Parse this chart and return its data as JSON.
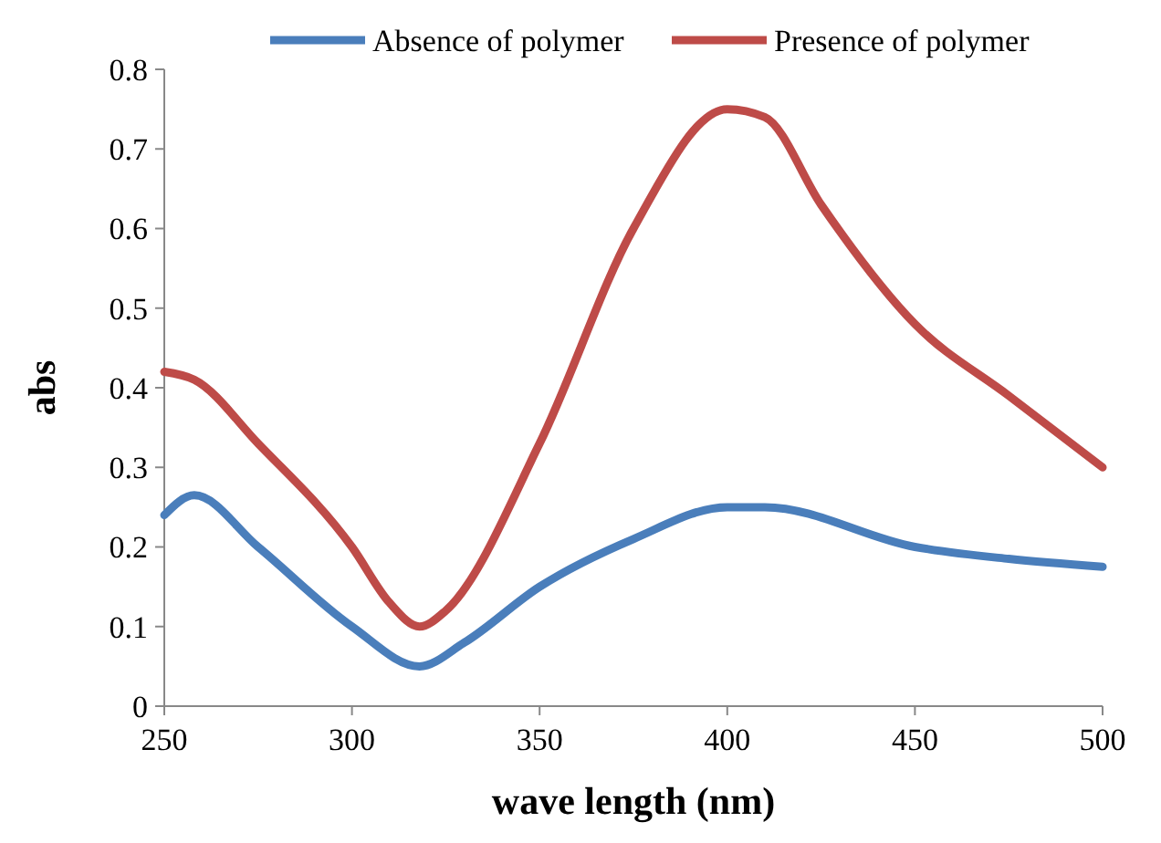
{
  "chart_data": {
    "type": "line",
    "xlabel": "wave length (nm)",
    "ylabel": "abs",
    "xlim": [
      250,
      500
    ],
    "xticks": [
      250,
      300,
      350,
      400,
      450,
      500
    ],
    "ylim": [
      0,
      0.8
    ],
    "yticks": [
      0,
      0.1,
      0.2,
      0.3,
      0.4,
      0.5,
      0.6,
      0.7,
      0.8
    ],
    "grid": false,
    "legend": "top",
    "marker": "none",
    "line_style": "solid",
    "series": [
      {
        "name": "Absence of  polymer",
        "color": "#4a7ebb",
        "x": [
          250,
          258,
          275,
          300,
          318,
          330,
          350,
          375,
          400,
          410,
          450,
          475,
          500
        ],
        "values": [
          0.24,
          0.265,
          0.2,
          0.1,
          0.05,
          0.08,
          0.15,
          0.21,
          0.25,
          0.25,
          0.2,
          0.185,
          0.175
        ]
      },
      {
        "name": "Presence of polymer",
        "color": "#be4b48",
        "x": [
          250,
          258,
          275,
          300,
          310,
          318,
          325,
          350,
          375,
          400,
          410,
          425,
          450,
          475,
          500
        ],
        "values": [
          0.42,
          0.41,
          0.33,
          0.2,
          0.13,
          0.1,
          0.12,
          0.33,
          0.6,
          0.75,
          0.74,
          0.63,
          0.48,
          0.39,
          0.3
        ]
      }
    ]
  }
}
